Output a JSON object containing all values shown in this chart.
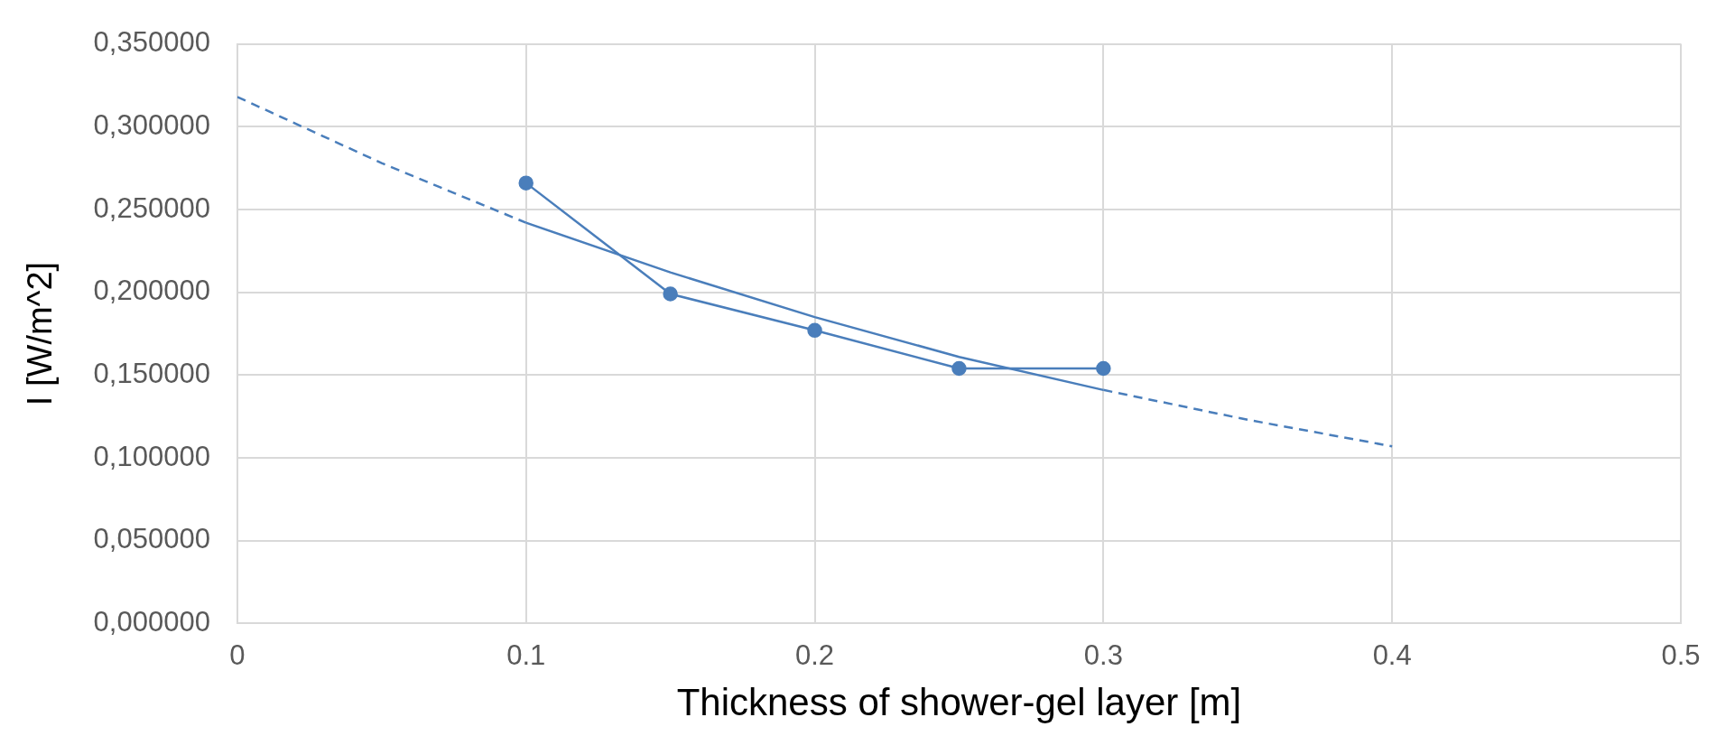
{
  "chart_data": {
    "type": "scatter",
    "xlabel": "Thickness of shower-gel layer [m]",
    "ylabel": "I [W/m^2]",
    "series": [
      {
        "type": "line",
        "color": "#4a7ebb",
        "x": [
          0.1,
          0.15,
          0.2,
          0.25,
          0.3
        ],
        "values": [
          0.266,
          0.199,
          0.177,
          0.154,
          0.154
        ],
        "marker": "circle",
        "line_style": "solid"
      },
      {
        "type": "line",
        "color": "#4a7ebb",
        "x": [
          0,
          0.05,
          0.1
        ],
        "values": [
          0.318,
          0.278,
          0.242
        ],
        "marker": "none",
        "line_style": "dashed"
      },
      {
        "type": "line",
        "color": "#4a7ebb",
        "x": [
          0.1,
          0.15,
          0.2,
          0.25,
          0.3
        ],
        "values": [
          0.242,
          0.212,
          0.185,
          0.161,
          0.141
        ],
        "marker": "none",
        "line_style": "solid"
      },
      {
        "type": "line",
        "color": "#4a7ebb",
        "x": [
          0.3,
          0.35,
          0.4
        ],
        "values": [
          0.141,
          0.123,
          0.107
        ],
        "marker": "none",
        "line_style": "dashed"
      }
    ],
    "xlim": [
      0,
      0.5
    ],
    "xticks": [
      0,
      0.1,
      0.2,
      0.3,
      0.4,
      0.5
    ],
    "ylim": [
      0,
      0.35
    ],
    "yticks": [
      {
        "value": 0,
        "label": "0,000000"
      },
      {
        "value": 0.05,
        "label": "0,050000"
      },
      {
        "value": 0.1,
        "label": "0,100000"
      },
      {
        "value": 0.15,
        "label": "0,150000"
      },
      {
        "value": 0.2,
        "label": "0,200000"
      },
      {
        "value": 0.25,
        "label": "0,250000"
      },
      {
        "value": 0.3,
        "label": "0,300000"
      },
      {
        "value": 0.35,
        "label": "0,350000"
      }
    ],
    "grid": true,
    "legend": false
  }
}
